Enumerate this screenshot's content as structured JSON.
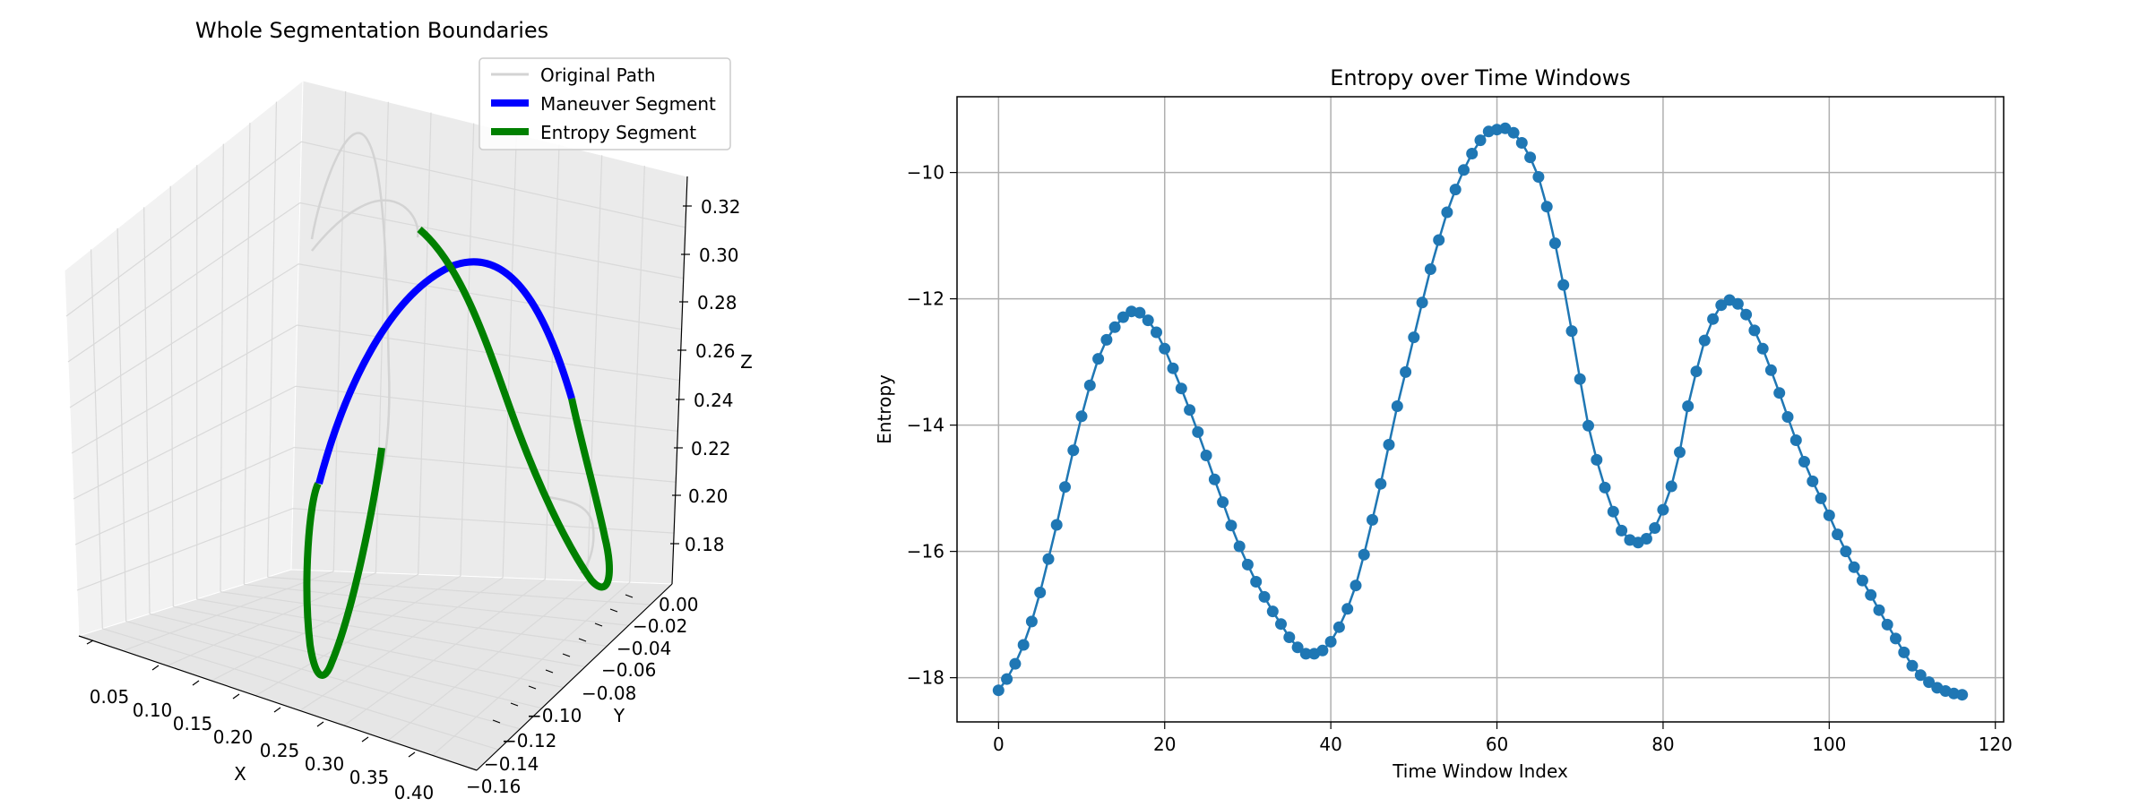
{
  "chart_data": [
    {
      "type": "line3d",
      "title": "Whole Segmentation Boundaries",
      "xlabel": "X",
      "ylabel": "Y",
      "zlabel": "Z",
      "xticks": [
        "0.05",
        "0.10",
        "0.15",
        "0.20",
        "0.25",
        "0.30",
        "0.35",
        "0.40"
      ],
      "yticks": [
        "0.00",
        "−0.02",
        "−0.04",
        "−0.06",
        "−0.08",
        "−0.10",
        "−0.12",
        "−0.14",
        "−0.16"
      ],
      "zticks": [
        "0.32",
        "0.30",
        "0.28",
        "0.26",
        "0.24",
        "0.22",
        "0.20",
        "0.18"
      ],
      "legend": {
        "placement": "top-right",
        "entries": [
          {
            "label": "Original Path",
            "color": "#d3d3d3"
          },
          {
            "label": "Maneuver Segment",
            "color": "#0000ff"
          },
          {
            "label": "Entropy Segment",
            "color": "#008000"
          }
        ]
      },
      "series": [
        {
          "name": "Original Path",
          "color": "#d3d3d3"
        },
        {
          "name": "Maneuver Segment",
          "color": "#0000ff"
        },
        {
          "name": "Entropy Segment",
          "color": "#008000"
        }
      ]
    },
    {
      "type": "line",
      "title": "Entropy over Time Windows",
      "xlabel": "Time Window Index",
      "ylabel": "Entropy",
      "xlim": [
        -5,
        121
      ],
      "ylim": [
        -18.7,
        -8.8
      ],
      "xticks": [
        0,
        20,
        40,
        60,
        80,
        100,
        120
      ],
      "yticks": [
        -10,
        -12,
        -14,
        -16,
        -18
      ],
      "grid": true,
      "color": "#1f77b4",
      "x_start": 0,
      "x_end": 116,
      "values": [
        -18.2,
        -18.02,
        -17.78,
        -17.48,
        -17.11,
        -16.65,
        -16.12,
        -15.58,
        -14.98,
        -14.4,
        -13.86,
        -13.37,
        -12.95,
        -12.65,
        -12.45,
        -12.29,
        -12.2,
        -12.22,
        -12.34,
        -12.53,
        -12.79,
        -13.1,
        -13.42,
        -13.76,
        -14.11,
        -14.48,
        -14.86,
        -15.22,
        -15.59,
        -15.92,
        -16.21,
        -16.48,
        -16.72,
        -16.95,
        -17.15,
        -17.36,
        -17.52,
        -17.62,
        -17.62,
        -17.57,
        -17.43,
        -17.2,
        -16.91,
        -16.54,
        -16.05,
        -15.5,
        -14.93,
        -14.31,
        -13.7,
        -13.16,
        -12.61,
        -12.06,
        -11.53,
        -11.07,
        -10.63,
        -10.27,
        -9.96,
        -9.7,
        -9.49,
        -9.35,
        -9.32,
        -9.3,
        -9.37,
        -9.53,
        -9.76,
        -10.07,
        -10.54,
        -11.12,
        -11.78,
        -12.51,
        -13.27,
        -14.01,
        -14.55,
        -14.99,
        -15.37,
        -15.67,
        -15.82,
        -15.86,
        -15.8,
        -15.63,
        -15.34,
        -14.97,
        -14.43,
        -13.7,
        -13.15,
        -12.66,
        -12.32,
        -12.1,
        -12.02,
        -12.08,
        -12.25,
        -12.5,
        -12.79,
        -13.13,
        -13.49,
        -13.87,
        -14.24,
        -14.58,
        -14.89,
        -15.16,
        -15.43,
        -15.73,
        -16.0,
        -16.25,
        -16.46,
        -16.69,
        -16.93,
        -17.16,
        -17.38,
        -17.6,
        -17.81,
        -17.96,
        -18.07,
        -18.16,
        -18.21,
        -18.25,
        -18.27
      ]
    }
  ]
}
